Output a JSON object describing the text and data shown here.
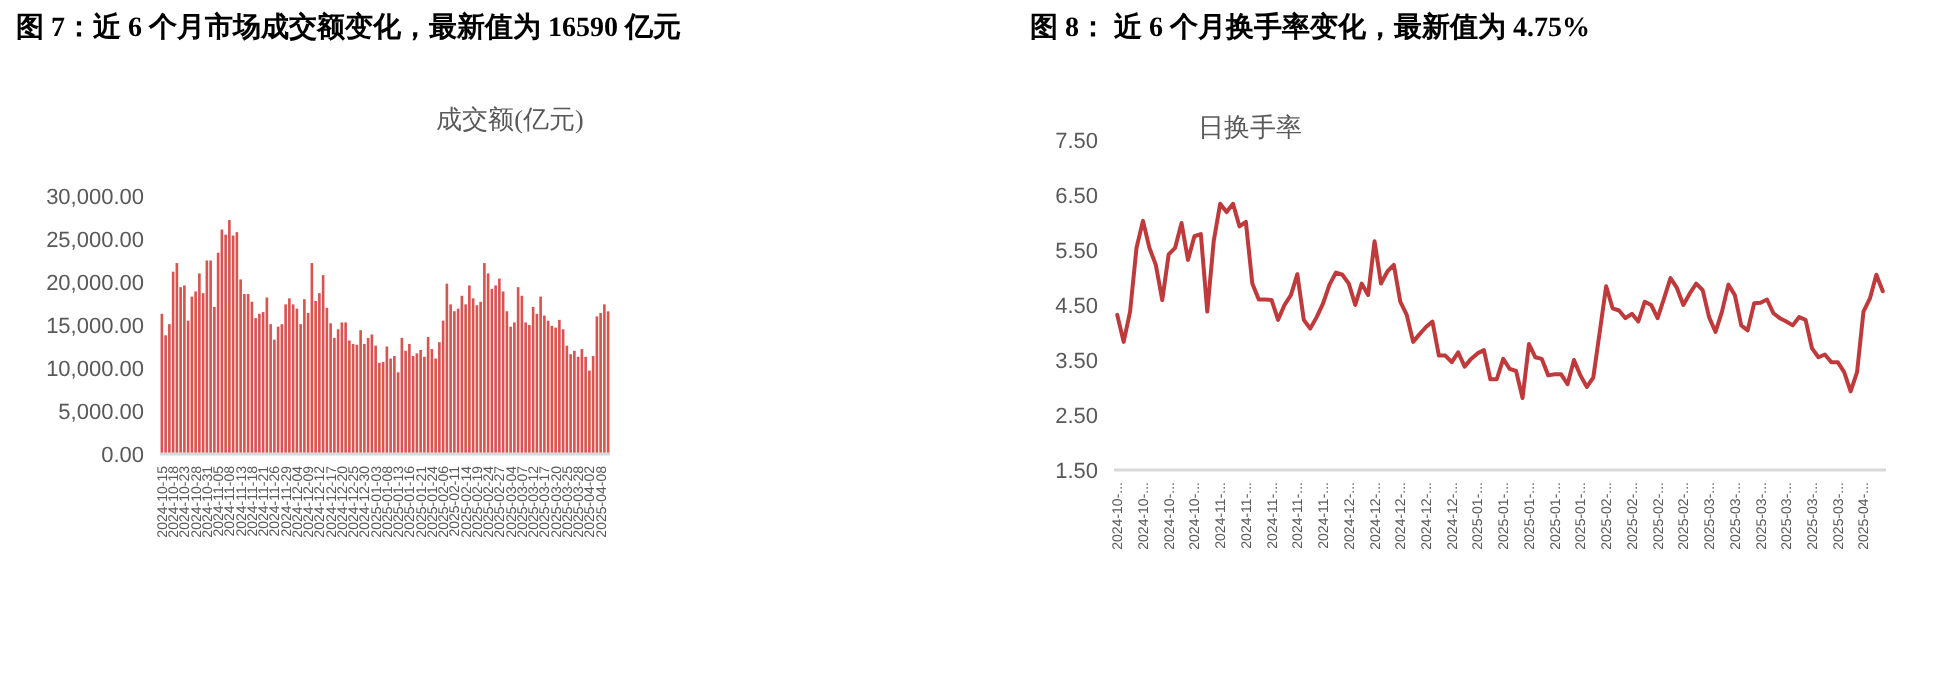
{
  "chart_data": [
    {
      "type": "bar",
      "title": "图 7：近 6 个月市场成交额变化，最新值为 16590 亿元",
      "subtitle": "成交额(亿元)",
      "color": "#d9534f",
      "categories": [
        "2024-10-15",
        null,
        null,
        "2024-10-18",
        null,
        null,
        "2024-10-23",
        null,
        null,
        "2024-10-28",
        null,
        null,
        "2024-10-31",
        null,
        null,
        "2024-11-05",
        null,
        null,
        "2024-11-08",
        null,
        null,
        "2024-11-13",
        null,
        null,
        "2024-11-18",
        null,
        null,
        "2024-11-21",
        null,
        null,
        "2024-11-26",
        null,
        null,
        "2024-11-29",
        null,
        null,
        "2024-12-04",
        null,
        null,
        "2024-12-09",
        null,
        null,
        "2024-12-12",
        null,
        null,
        "2024-12-17",
        null,
        null,
        "2024-12-20",
        null,
        null,
        "2024-12-25",
        null,
        null,
        "2024-12-30",
        null,
        null,
        "2025-01-03",
        null,
        null,
        "2025-01-08",
        null,
        null,
        "2025-01-13",
        null,
        null,
        "2025-01-16",
        null,
        null,
        "2025-01-21",
        null,
        null,
        "2025-01-24",
        null,
        null,
        "2025-02-06",
        null,
        null,
        "2025-02-11",
        null,
        null,
        "2025-02-14",
        null,
        null,
        "2025-02-19",
        null,
        null,
        "2025-02-24",
        null,
        null,
        "2025-02-27",
        null,
        null,
        "2025-03-04",
        null,
        null,
        "2025-03-07",
        null,
        null,
        "2025-03-12",
        null,
        null,
        "2025-03-17",
        null,
        null,
        "2025-03-20",
        null,
        null,
        "2025-03-25",
        null,
        null,
        "2025-03-28",
        null,
        null,
        "2025-04-02",
        null,
        null,
        "2025-04-08",
        null,
        null
      ],
      "values": [
        16300,
        13800,
        15100,
        21200,
        22200,
        19400,
        19600,
        15500,
        18300,
        18900,
        21000,
        18700,
        22500,
        22500,
        17100,
        23400,
        26100,
        25500,
        27200,
        25400,
        25800,
        20300,
        18600,
        18600,
        17700,
        15800,
        16300,
        16500,
        18200,
        15100,
        13300,
        14800,
        15100,
        17400,
        18100,
        17400,
        16900,
        15100,
        18000,
        16400,
        22200,
        17800,
        18700,
        20800,
        17000,
        15200,
        13500,
        14500,
        15300,
        15300,
        13200,
        12800,
        12700,
        14400,
        12800,
        13500,
        13900,
        12600,
        10600,
        10700,
        12500,
        11100,
        11400,
        9500,
        13500,
        12000,
        12800,
        11400,
        11700,
        12100,
        11300,
        13600,
        12200,
        11100,
        13000,
        15500,
        19800,
        17400,
        16600,
        16900,
        18400,
        17400,
        19600,
        18100,
        17300,
        17700,
        22200,
        21000,
        19200,
        19600,
        20400,
        18900,
        16600,
        14800,
        15300,
        19400,
        18400,
        15300,
        15000,
        17100,
        16300,
        18300,
        16100,
        15500,
        14900,
        14700,
        15600,
        14500,
        12600,
        11600,
        12000,
        11300,
        12200,
        11300,
        9700,
        11400,
        16000,
        16400,
        17400,
        16590
      ],
      "ylim": [
        0,
        30000
      ],
      "yticks": [
        {
          "value": 0,
          "label": "0.00"
        },
        {
          "value": 5000,
          "label": "5,000.00"
        },
        {
          "value": 10000,
          "label": "10,000.00"
        },
        {
          "value": 15000,
          "label": "15,000.00"
        },
        {
          "value": 20000,
          "label": "20,000.00"
        },
        {
          "value": 25000,
          "label": "25,000.00"
        },
        {
          "value": 30000,
          "label": "30,000.00"
        }
      ]
    },
    {
      "type": "line",
      "title": "图 8：  近 6 个月换手率变化，最新值为 4.75%",
      "subtitle": "日换手率",
      "color": "#c0393b",
      "marker": "none",
      "categories": [
        "2024-10-...",
        null,
        null,
        null,
        "2024-10-...",
        null,
        null,
        null,
        "2024-10-...",
        null,
        null,
        null,
        "2024-10-...",
        null,
        null,
        null,
        "2024-11-...",
        null,
        null,
        null,
        "2024-11-...",
        null,
        null,
        null,
        "2024-11-...",
        null,
        null,
        null,
        "2024-11-...",
        null,
        null,
        null,
        "2024-11-...",
        null,
        null,
        null,
        "2024-12-...",
        null,
        null,
        null,
        "2024-12-...",
        null,
        null,
        null,
        "2024-12-...",
        null,
        null,
        null,
        "2024-12-...",
        null,
        null,
        null,
        "2024-12-...",
        null,
        null,
        null,
        "2025-01-...",
        null,
        null,
        null,
        "2025-01-...",
        null,
        null,
        null,
        "2025-01-...",
        null,
        null,
        null,
        "2025-01-...",
        null,
        null,
        null,
        "2025-01-...",
        null,
        null,
        null,
        "2025-02-...",
        null,
        null,
        null,
        "2025-02-...",
        null,
        null,
        null,
        "2025-02-...",
        null,
        null,
        null,
        "2025-02-...",
        null,
        null,
        null,
        "2025-03-...",
        null,
        null,
        null,
        "2025-03-...",
        null,
        null,
        null,
        "2025-03-...",
        null,
        null,
        null,
        "2025-03-...",
        null,
        null,
        null,
        "2025-03-...",
        null,
        null,
        null,
        "2025-03-...",
        null,
        null,
        null,
        "2025-04-...",
        null,
        null,
        null
      ],
      "values": [
        4.32,
        3.83,
        4.38,
        5.54,
        6.03,
        5.54,
        5.23,
        4.59,
        5.42,
        5.54,
        5.99,
        5.32,
        5.75,
        5.79,
        4.38,
        5.66,
        6.34,
        6.19,
        6.34,
        5.93,
        6.01,
        4.89,
        4.6,
        4.6,
        4.59,
        4.23,
        4.5,
        4.68,
        5.06,
        4.23,
        4.07,
        4.28,
        4.53,
        4.87,
        5.09,
        5.05,
        4.89,
        4.5,
        4.89,
        4.68,
        5.66,
        4.89,
        5.11,
        5.23,
        4.56,
        4.32,
        3.83,
        3.97,
        4.1,
        4.2,
        3.58,
        3.58,
        3.46,
        3.64,
        3.38,
        3.52,
        3.62,
        3.68,
        3.15,
        3.15,
        3.52,
        3.34,
        3.3,
        2.81,
        3.79,
        3.55,
        3.52,
        3.22,
        3.24,
        3.24,
        3.06,
        3.5,
        3.22,
        3.01,
        3.18,
        4.01,
        4.84,
        4.44,
        4.4,
        4.26,
        4.34,
        4.2,
        4.56,
        4.5,
        4.26,
        4.62,
        4.99,
        4.81,
        4.5,
        4.71,
        4.89,
        4.77,
        4.28,
        4.01,
        4.38,
        4.87,
        4.68,
        4.13,
        4.04,
        4.53,
        4.54,
        4.6,
        4.35,
        4.26,
        4.2,
        4.13,
        4.28,
        4.23,
        3.71,
        3.55,
        3.6,
        3.46,
        3.46,
        3.28,
        2.93,
        3.28,
        4.38,
        4.62,
        5.05,
        4.75
      ],
      "ylim": [
        1.5,
        7.5
      ],
      "yticks": [
        {
          "value": 1.5,
          "label": "1.50"
        },
        {
          "value": 2.5,
          "label": "2.50"
        },
        {
          "value": 3.5,
          "label": "3.50"
        },
        {
          "value": 4.5,
          "label": "4.50"
        },
        {
          "value": 5.5,
          "label": "5.50"
        },
        {
          "value": 6.5,
          "label": "6.50"
        },
        {
          "value": 7.5,
          "label": "7.50"
        }
      ]
    }
  ]
}
